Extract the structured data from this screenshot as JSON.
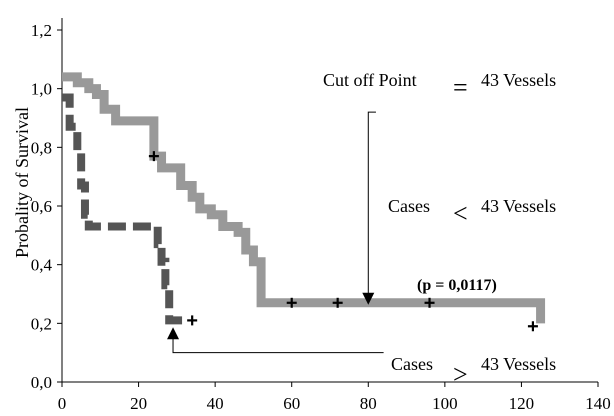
{
  "chart_data": {
    "type": "line",
    "ylabel": "Probality of Survival",
    "xlim": [
      0,
      140
    ],
    "ylim": [
      0,
      1.2
    ],
    "x_ticks": [
      0,
      20,
      40,
      60,
      80,
      100,
      120,
      140
    ],
    "x_tick_labels": [
      "0",
      "20",
      "40",
      "60",
      "80",
      "100",
      "120",
      "140"
    ],
    "y_ticks": [
      0,
      0.2,
      0.4,
      0.6,
      0.8,
      1.0,
      1.2
    ],
    "y_tick_labels": [
      "0,0",
      "0,2",
      "0,4",
      "0,6",
      "0,8",
      "1,0",
      "1,2"
    ],
    "grid": false,
    "series": [
      {
        "color": "#999999",
        "style": "thick step line",
        "x": [
          0,
          4,
          7,
          9,
          11,
          14,
          24,
          26,
          31,
          34,
          36,
          39,
          42,
          46,
          48,
          50,
          52,
          60,
          72,
          80,
          94,
          96,
          125,
          125
        ],
        "y": [
          1.04,
          1.02,
          1.0,
          0.98,
          0.93,
          0.89,
          0.77,
          0.73,
          0.67,
          0.63,
          0.59,
          0.57,
          0.53,
          0.51,
          0.45,
          0.41,
          0.27,
          0.27,
          0.27,
          0.27,
          0.27,
          0.27,
          0.27,
          0.2
        ]
      },
      {
        "color": "#555555",
        "style": "thick dashed step line",
        "x": [
          0,
          2,
          4,
          5,
          6,
          7,
          13,
          20,
          25,
          26,
          27,
          28,
          32
        ],
        "y": [
          0.97,
          0.87,
          0.79,
          0.67,
          0.57,
          0.53,
          0.53,
          0.53,
          0.47,
          0.41,
          0.33,
          0.21,
          0.21
        ]
      }
    ],
    "censor_marks": [
      {
        "x": 24,
        "y": 0.77
      },
      {
        "x": 34,
        "y": 0.21
      },
      {
        "x": 60,
        "y": 0.27
      },
      {
        "x": 72,
        "y": 0.27
      },
      {
        "x": 96,
        "y": 0.27
      },
      {
        "x": 123,
        "y": 0.19
      }
    ],
    "annotations": {
      "cut_off_label": "Cut off Point",
      "cut_off_eq": "=",
      "cut_off_value": "43 Vessels",
      "cases_less_label": "Cases",
      "cases_less_sym": "<",
      "cases_less_value": "43 Vessels",
      "cases_greater_label": "Cases",
      "cases_greater_sym": ">",
      "cases_greater_value": "43 Vessels",
      "p_value": "(p = 0,0117)"
    },
    "arrows": [
      {
        "from": [
          82,
          0.92
        ],
        "to": [
          80,
          0.27
        ],
        "direction": "down"
      },
      {
        "from": [
          84,
          0.1
        ],
        "to": [
          29,
          0.18
        ],
        "direction": "up"
      }
    ]
  }
}
